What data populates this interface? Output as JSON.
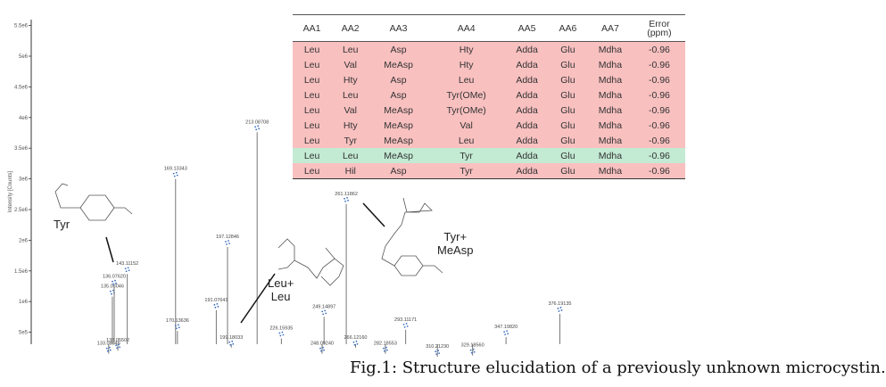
{
  "chart_data": {
    "type": "bar",
    "ylabel": "Intensity [Counts]",
    "yticks": [
      "5e5",
      "1e6",
      "1.5e6",
      "2e6",
      "2.5e6",
      "3e6",
      "3.5e6",
      "4e6",
      "4.5e6",
      "5e6",
      "5.5e6"
    ],
    "ylim": [
      0,
      5600000
    ],
    "peaks": [
      {
        "mz": 133.08546,
        "label": "133.08546",
        "intensity": 150000
      },
      {
        "mz": 135.08046,
        "label": "135.08046",
        "intensity": 1080000
      },
      {
        "mz": 136.0762,
        "label": "136.07620",
        "intensity": 1240000
      },
      {
        "mz": 138.05502,
        "label": "138.05502",
        "intensity": 200000
      },
      {
        "mz": 143.11152,
        "label": "143.11152",
        "intensity": 1450000
      },
      {
        "mz": 169.13343,
        "label": "169.13343",
        "intensity": 3000000
      },
      {
        "mz": 170.13636,
        "label": "170.13636",
        "intensity": 520000
      },
      {
        "mz": 191.07641,
        "label": "191.07641",
        "intensity": 860000
      },
      {
        "mz": 197.12846,
        "label": "197.12846",
        "intensity": 1890000
      },
      {
        "mz": 199.18033,
        "label": "199.18033",
        "intensity": 250000
      },
      {
        "mz": 213.08708,
        "label": "213.08708",
        "intensity": 3760000
      },
      {
        "mz": 226.15935,
        "label": "226.15935",
        "intensity": 400000
      },
      {
        "mz": 249.14897,
        "label": "249.14897",
        "intensity": 750000
      },
      {
        "mz": 248.0924,
        "label": "248.09240",
        "intensity": 150000
      },
      {
        "mz": 261.11862,
        "label": "261.11862",
        "intensity": 2590000
      },
      {
        "mz": 266.1216,
        "label": "266.12160",
        "intensity": 250000
      },
      {
        "mz": 282.18553,
        "label": "282.18553",
        "intensity": 150000
      },
      {
        "mz": 293.11171,
        "label": "293.11171",
        "intensity": 540000
      },
      {
        "mz": 310.2123,
        "label": "310.21230",
        "intensity": 100000
      },
      {
        "mz": 329.1856,
        "label": "329.18560",
        "intensity": 120000
      },
      {
        "mz": 347.1982,
        "label": "347.19820",
        "intensity": 420000
      },
      {
        "mz": 376.19135,
        "label": "376.19135",
        "intensity": 800000
      }
    ],
    "colors": {
      "peak": "#777777",
      "isotope_marker": "#3a6fc4"
    }
  },
  "structures": {
    "tyr": "Tyr",
    "leu_leu": [
      "Leu+",
      "Leu"
    ],
    "tyr_measp": [
      "Tyr+",
      "MeAsp"
    ]
  },
  "table": {
    "headers": [
      "AA1",
      "AA2",
      "AA3",
      "AA4",
      "AA5",
      "AA6",
      "AA7",
      [
        "Error",
        "(ppm)"
      ]
    ],
    "rows": [
      {
        "highlight": "red",
        "cells": [
          "Leu",
          "Leu",
          "Asp",
          "Hty",
          "Adda",
          "Glu",
          "Mdha",
          "-0.96"
        ]
      },
      {
        "highlight": "red",
        "cells": [
          "Leu",
          "Val",
          "MeAsp",
          "Hty",
          "Adda",
          "Glu",
          "Mdha",
          "-0.96"
        ]
      },
      {
        "highlight": "red",
        "cells": [
          "Leu",
          "Hty",
          "Asp",
          "Leu",
          "Adda",
          "Glu",
          "Mdha",
          "-0.96"
        ]
      },
      {
        "highlight": "red",
        "cells": [
          "Leu",
          "Leu",
          "Asp",
          "Tyr(OMe)",
          "Adda",
          "Glu",
          "Mdha",
          "-0.96"
        ]
      },
      {
        "highlight": "red",
        "cells": [
          "Leu",
          "Val",
          "MeAsp",
          "Tyr(OMe)",
          "Adda",
          "Glu",
          "Mdha",
          "-0.96"
        ]
      },
      {
        "highlight": "red",
        "cells": [
          "Leu",
          "Hty",
          "MeAsp",
          "Val",
          "Adda",
          "Glu",
          "Mdha",
          "-0.96"
        ]
      },
      {
        "highlight": "red",
        "cells": [
          "Leu",
          "Tyr",
          "MeAsp",
          "Leu",
          "Adda",
          "Glu",
          "Mdha",
          "-0.96"
        ]
      },
      {
        "highlight": "green",
        "cells": [
          "Leu",
          "Leu",
          "MeAsp",
          "Tyr",
          "Adda",
          "Glu",
          "Mdha",
          "-0.96"
        ]
      },
      {
        "highlight": "red",
        "cells": [
          "Leu",
          "Hil",
          "Asp",
          "Tyr",
          "Adda",
          "Glu",
          "Mdha",
          "-0.96"
        ]
      }
    ],
    "colors": {
      "red": "#f9c0c0",
      "green": "#c3ead3"
    }
  },
  "caption": "Fig.1: Structure elucidation of a previously unknown microcystin."
}
